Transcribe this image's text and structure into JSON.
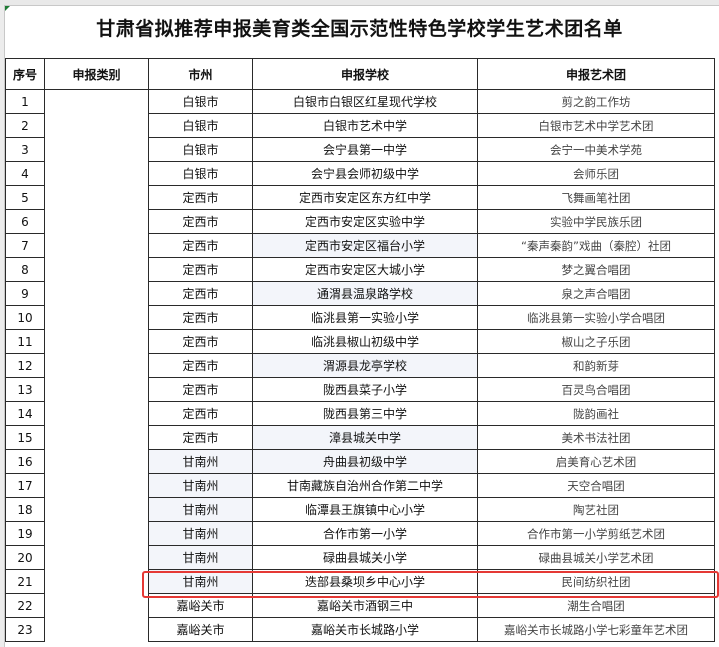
{
  "title": "甘肃省拟推荐申报美育类全国示范性特色学校学生艺术团名单",
  "headers": {
    "no": "序号",
    "category": "申报类别",
    "city": "市州",
    "school": "申报学校",
    "troupe": "申报艺术团"
  },
  "highlight_color": "#e53935",
  "highlighted_row": 21,
  "rows": [
    {
      "no": "1",
      "city": "白银市",
      "school": "白银市白银区红星现代学校",
      "troupe": "剪之韵工作坊"
    },
    {
      "no": "2",
      "city": "白银市",
      "school": "白银市艺术中学",
      "troupe": "白银市艺术中学艺术团"
    },
    {
      "no": "3",
      "city": "白银市",
      "school": "会宁县第一中学",
      "troupe": "会宁一中美术学苑"
    },
    {
      "no": "4",
      "city": "白银市",
      "school": "会宁县会师初级中学",
      "troupe": "会师乐团"
    },
    {
      "no": "5",
      "city": "定西市",
      "school": "定西市安定区东方红中学",
      "troupe": "飞舞画笔社团"
    },
    {
      "no": "6",
      "city": "定西市",
      "school": "定西市安定区实验中学",
      "troupe": "实验中学民族乐团"
    },
    {
      "no": "7",
      "city": "定西市",
      "school": "定西市安定区福台小学",
      "troupe": "“秦声秦韵”戏曲（秦腔）社团"
    },
    {
      "no": "8",
      "city": "定西市",
      "school": "定西市安定区大城小学",
      "troupe": "梦之翼合唱团"
    },
    {
      "no": "9",
      "city": "定西市",
      "school": "通渭县温泉路学校",
      "troupe": "泉之声合唱团"
    },
    {
      "no": "10",
      "city": "定西市",
      "school": "临洮县第一实验小学",
      "troupe": "临洮县第一实验小学合唱团"
    },
    {
      "no": "11",
      "city": "定西市",
      "school": "临洮县椒山初级中学",
      "troupe": "椒山之子乐团"
    },
    {
      "no": "12",
      "city": "定西市",
      "school": "渭源县龙亭学校",
      "troupe": "和韵新芽"
    },
    {
      "no": "13",
      "city": "定西市",
      "school": "陇西县菜子小学",
      "troupe": "百灵鸟合唱团"
    },
    {
      "no": "14",
      "city": "定西市",
      "school": "陇西县第三中学",
      "troupe": "陇韵画社"
    },
    {
      "no": "15",
      "city": "定西市",
      "school": "漳县城关中学",
      "troupe": "美术书法社团"
    },
    {
      "no": "16",
      "city": "甘南州",
      "school": "舟曲县初级中学",
      "troupe": "启美育心艺术团"
    },
    {
      "no": "17",
      "city": "甘南州",
      "school": "甘南藏族自治州合作第二中学",
      "troupe": "天空合唱团"
    },
    {
      "no": "18",
      "city": "甘南州",
      "school": "临潭县王旗镇中心小学",
      "troupe": "陶艺社团"
    },
    {
      "no": "19",
      "city": "甘南州",
      "school": "合作市第一小学",
      "troupe": "合作市第一小学剪纸艺术团"
    },
    {
      "no": "20",
      "city": "甘南州",
      "school": "碌曲县城关小学",
      "troupe": "碌曲县城关小学艺术团"
    },
    {
      "no": "21",
      "city": "甘南州",
      "school": "迭部县桑坝乡中心小学",
      "troupe": "民间纺织社团"
    },
    {
      "no": "22",
      "city": "嘉峪关市",
      "school": "嘉峪关市酒钢三中",
      "troupe": "潮生合唱团"
    },
    {
      "no": "23",
      "city": "嘉峪关市",
      "school": "嘉峪关市长城路小学",
      "troupe": "嘉峪关市长城路小学七彩童年艺术团"
    }
  ]
}
